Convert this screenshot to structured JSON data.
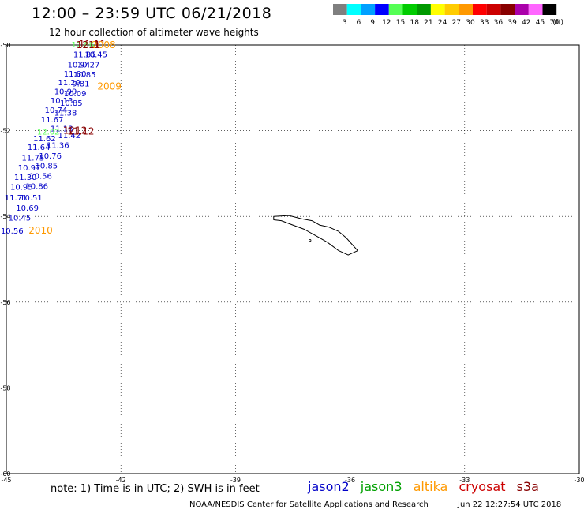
{
  "header": {
    "title": "12:00 – 23:59 UTC 06/21/2018",
    "subtitle": "12 hour collection of altimeter wave heights"
  },
  "colorbar": {
    "unit": "(ft)",
    "bins": [
      {
        "color": "#7f7f7f",
        "label": "3"
      },
      {
        "color": "#00ffff",
        "label": "6"
      },
      {
        "color": "#00a0ff",
        "label": "9"
      },
      {
        "color": "#0000ff",
        "label": "12"
      },
      {
        "color": "#55ff55",
        "label": "15"
      },
      {
        "color": "#00cc00",
        "label": "18"
      },
      {
        "color": "#009900",
        "label": "21"
      },
      {
        "color": "#ffff00",
        "label": "24"
      },
      {
        "color": "#ffcc00",
        "label": "27"
      },
      {
        "color": "#ff9900",
        "label": "30"
      },
      {
        "color": "#ff0000",
        "label": "33"
      },
      {
        "color": "#cc0000",
        "label": "36"
      },
      {
        "color": "#880000",
        "label": "39"
      },
      {
        "color": "#aa00aa",
        "label": "42"
      },
      {
        "color": "#ff66ff",
        "label": "45"
      },
      {
        "color": "#000000",
        "label": "70"
      }
    ]
  },
  "map": {
    "lon_range": [
      -45,
      -30
    ],
    "lat_range": [
      -60,
      -50
    ],
    "lon_ticks": [
      -45,
      -42,
      -39,
      -36,
      -33,
      -30
    ],
    "lat_ticks": [
      -50,
      -52,
      -54,
      -56,
      -58,
      -60
    ],
    "lon_tick_labels": [
      "-45",
      "-42",
      "-39",
      "-36",
      "-33",
      "-30"
    ],
    "lat_tick_labels": [
      "-50",
      "-52",
      "-54",
      "-56",
      "-58",
      "-60"
    ],
    "grid": true,
    "grid_style": "dotted",
    "island": "South Georgia",
    "coastline": [
      [
        -38.0,
        -54.0
      ],
      [
        -37.6,
        -53.98
      ],
      [
        -37.3,
        -54.05
      ],
      [
        -37.0,
        -54.1
      ],
      [
        -36.8,
        -54.2
      ],
      [
        -36.55,
        -54.25
      ],
      [
        -36.3,
        -54.35
      ],
      [
        -36.1,
        -54.5
      ],
      [
        -35.95,
        -54.65
      ],
      [
        -35.8,
        -54.8
      ],
      [
        -36.05,
        -54.9
      ],
      [
        -36.3,
        -54.8
      ],
      [
        -36.6,
        -54.6
      ],
      [
        -36.9,
        -54.45
      ],
      [
        -37.2,
        -54.3
      ],
      [
        -37.5,
        -54.2
      ],
      [
        -37.8,
        -54.1
      ],
      [
        -38.0,
        -54.08
      ]
    ],
    "islet": [
      -37.05,
      -54.56
    ]
  },
  "tracks": {
    "jason2": {
      "color": "#0000c8",
      "points": [
        {
          "lon": -42.95,
          "lat": -50.21,
          "value": "11.85"
        },
        {
          "lon": -42.65,
          "lat": -50.21,
          "value": "10.45"
        },
        {
          "lon": -43.1,
          "lat": -50.45,
          "value": "10.94"
        },
        {
          "lon": -42.85,
          "lat": -50.45,
          "value": "10.27"
        },
        {
          "lon": -43.2,
          "lat": -50.66,
          "value": "11.80"
        },
        {
          "lon": -42.95,
          "lat": -50.68,
          "value": "10.85"
        },
        {
          "lon": -43.35,
          "lat": -50.87,
          "value": "11.29"
        },
        {
          "lon": -43.05,
          "lat": -50.89,
          "value": "9.81"
        },
        {
          "lon": -43.45,
          "lat": -51.08,
          "value": "10.99"
        },
        {
          "lon": -43.2,
          "lat": -51.12,
          "value": "10.09"
        },
        {
          "lon": -43.55,
          "lat": -51.29,
          "value": "10.13"
        },
        {
          "lon": -43.3,
          "lat": -51.34,
          "value": "10.85"
        },
        {
          "lon": -43.7,
          "lat": -51.51,
          "value": "10.74"
        },
        {
          "lon": -43.45,
          "lat": -51.57,
          "value": "11.38"
        },
        {
          "lon": -43.8,
          "lat": -51.73,
          "value": "11.67"
        },
        {
          "lon": -43.55,
          "lat": -51.94,
          "value": "11.18"
        },
        {
          "lon": -43.35,
          "lat": -52.1,
          "value": "11.42"
        },
        {
          "lon": -44.0,
          "lat": -52.17,
          "value": "11.62"
        },
        {
          "lon": -43.65,
          "lat": -52.33,
          "value": "11.36"
        },
        {
          "lon": -44.15,
          "lat": -52.38,
          "value": "11.64"
        },
        {
          "lon": -43.85,
          "lat": -52.58,
          "value": "10.76"
        },
        {
          "lon": -44.3,
          "lat": -52.62,
          "value": "11.75"
        },
        {
          "lon": -43.95,
          "lat": -52.81,
          "value": "10.85"
        },
        {
          "lon": -44.4,
          "lat": -52.85,
          "value": "10.97"
        },
        {
          "lon": -44.1,
          "lat": -53.05,
          "value": "10.56"
        },
        {
          "lon": -44.5,
          "lat": -53.08,
          "value": "11.30"
        },
        {
          "lon": -44.2,
          "lat": -53.29,
          "value": "10.86"
        },
        {
          "lon": -44.6,
          "lat": -53.31,
          "value": "10.95"
        },
        {
          "lon": -44.35,
          "lat": -53.55,
          "value": "10.51"
        },
        {
          "lon": -44.75,
          "lat": -53.55,
          "value": "11.71"
        },
        {
          "lon": -44.45,
          "lat": -53.79,
          "value": "10.69"
        },
        {
          "lon": -44.65,
          "lat": -54.02,
          "value": "10.45"
        },
        {
          "lon": -44.85,
          "lat": -54.33,
          "value": "10.56"
        }
      ]
    },
    "jason3": {
      "color": "#55ff55",
      "points": [
        {
          "lon": -43.0,
          "lat": -49.98,
          "value": "12.86"
        },
        {
          "lon": -43.9,
          "lat": -52.02,
          "value": "12.02"
        }
      ]
    },
    "cryosat": {
      "color": "#880000",
      "points": [
        {
          "lon": -42.75,
          "lat": -49.98,
          "value": "11.11"
        },
        {
          "lon": -43.05,
          "lat": -52.02,
          "value": "11.12"
        }
      ]
    },
    "times": [
      {
        "lon": -42.45,
        "lat": -50.0,
        "value": "2008",
        "color": "#ff9900"
      },
      {
        "lon": -43.2,
        "lat": -52.0,
        "value": "1212",
        "color": "#880000"
      },
      {
        "lon": -42.3,
        "lat": -50.97,
        "value": "2009",
        "color": "#ff9900"
      },
      {
        "lon": -42.85,
        "lat": -50.0,
        "value": "1211",
        "color": "#880000"
      },
      {
        "lon": -44.1,
        "lat": -54.33,
        "value": "2010",
        "color": "#ff9900"
      }
    ]
  },
  "note": "note:  1) Time is in UTC;  2) SWH is in feet",
  "legend": [
    {
      "name": "jason2",
      "color": "#0000c8"
    },
    {
      "name": "jason3",
      "color": "#00a000"
    },
    {
      "name": "altika",
      "color": "#ff9900"
    },
    {
      "name": "cryosat",
      "color": "#cc0000"
    },
    {
      "name": "s3a",
      "color": "#880000"
    }
  ],
  "credit": "NOAA/NESDIS Center for Satellite Applications and Research",
  "timestamp": "Jun 22 12:27:54 UTC 2018"
}
